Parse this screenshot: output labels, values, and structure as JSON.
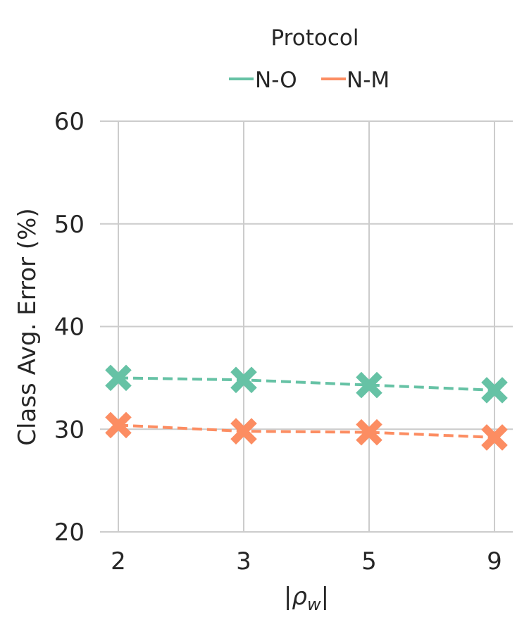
{
  "chart_data": {
    "type": "line",
    "categories": [
      "2",
      "3",
      "5",
      "9"
    ],
    "xlabel": "|ρw|",
    "ylabel": "Class Avg. Error (%)",
    "ylim": [
      20,
      60
    ],
    "yticks": [
      20,
      30,
      40,
      50,
      60
    ],
    "grid": true,
    "legend": {
      "title": "Protocol",
      "placement": "top-center"
    },
    "series": [
      {
        "name": "N-O",
        "values": [
          35.0,
          34.8,
          34.3,
          33.8
        ],
        "color": "#66c2a5",
        "marker": "x",
        "linestyle": "dashed"
      },
      {
        "name": "N-M",
        "values": [
          30.4,
          29.8,
          29.7,
          29.2
        ],
        "color": "#fc8d62",
        "marker": "x",
        "linestyle": "dashed"
      }
    ]
  }
}
